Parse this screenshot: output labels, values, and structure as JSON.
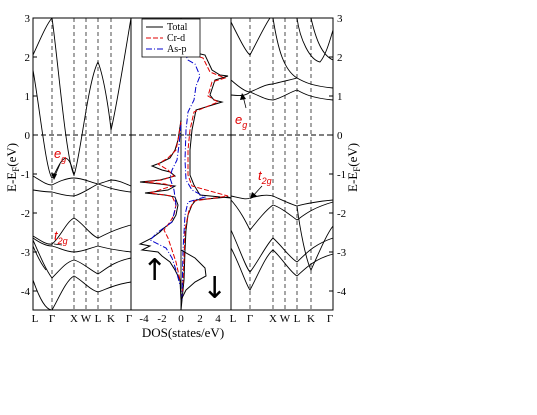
{
  "chart_data": {
    "type": "line",
    "y_range": [
      -4.5,
      3
    ],
    "yticks": [
      "-4",
      "-3",
      "-2",
      "-1",
      "0",
      "1",
      "2",
      "3"
    ],
    "ylabel_left": "E-E",
    "ylabel_sub": "F",
    "ylabel_unit": "(eV)",
    "ylabel_right": "E-E",
    "xlabel": "DOS(states/eV)",
    "kpoints": [
      "L",
      "Γ",
      "X",
      "W",
      "L",
      "K",
      "Γ"
    ],
    "dos_ticks": [
      "-4",
      "-2",
      "0",
      "2",
      "4"
    ],
    "dos_range": [
      -5,
      5
    ],
    "legend": [
      "Total",
      "Cr-d",
      "As-p"
    ],
    "colors": {
      "total": "#000000",
      "crd": "#e00000",
      "asp": "#0000cc"
    },
    "annotations": {
      "eg_label": "e",
      "eg_sub": "g",
      "t2g_label": "t",
      "t2g_sub": "2g"
    },
    "spin_up_symbol": "↑",
    "spin_down_symbol": "↓",
    "series_spin_up_dos": {
      "energy": [
        -4.4,
        -4.2,
        -4.0,
        -3.8,
        -3.6,
        -3.4,
        -3.2,
        -3.0,
        -2.85,
        -2.7,
        -2.5,
        -2.3,
        -2.1,
        -1.9,
        -1.7,
        -1.6,
        -1.5,
        -1.4,
        -1.3,
        -1.2,
        -1.1,
        -1.0,
        -0.9,
        -0.8,
        -0.6,
        -0.4,
        -0.2,
        0.0
      ],
      "total": [
        -0.8,
        -1.2,
        -1.6,
        -1.8,
        -2.0,
        -2.2,
        -2.6,
        -3.0,
        -4.6,
        -2.8,
        -2.4,
        -2.0,
        -1.8,
        -1.6,
        -1.4,
        -1.4,
        -4.2,
        -2.8,
        -5.0,
        -2.5,
        -4.6,
        -1.5,
        -0.4,
        -0.2,
        -0.1,
        -0.05,
        -0.02,
        0.0
      ]
    }
  }
}
